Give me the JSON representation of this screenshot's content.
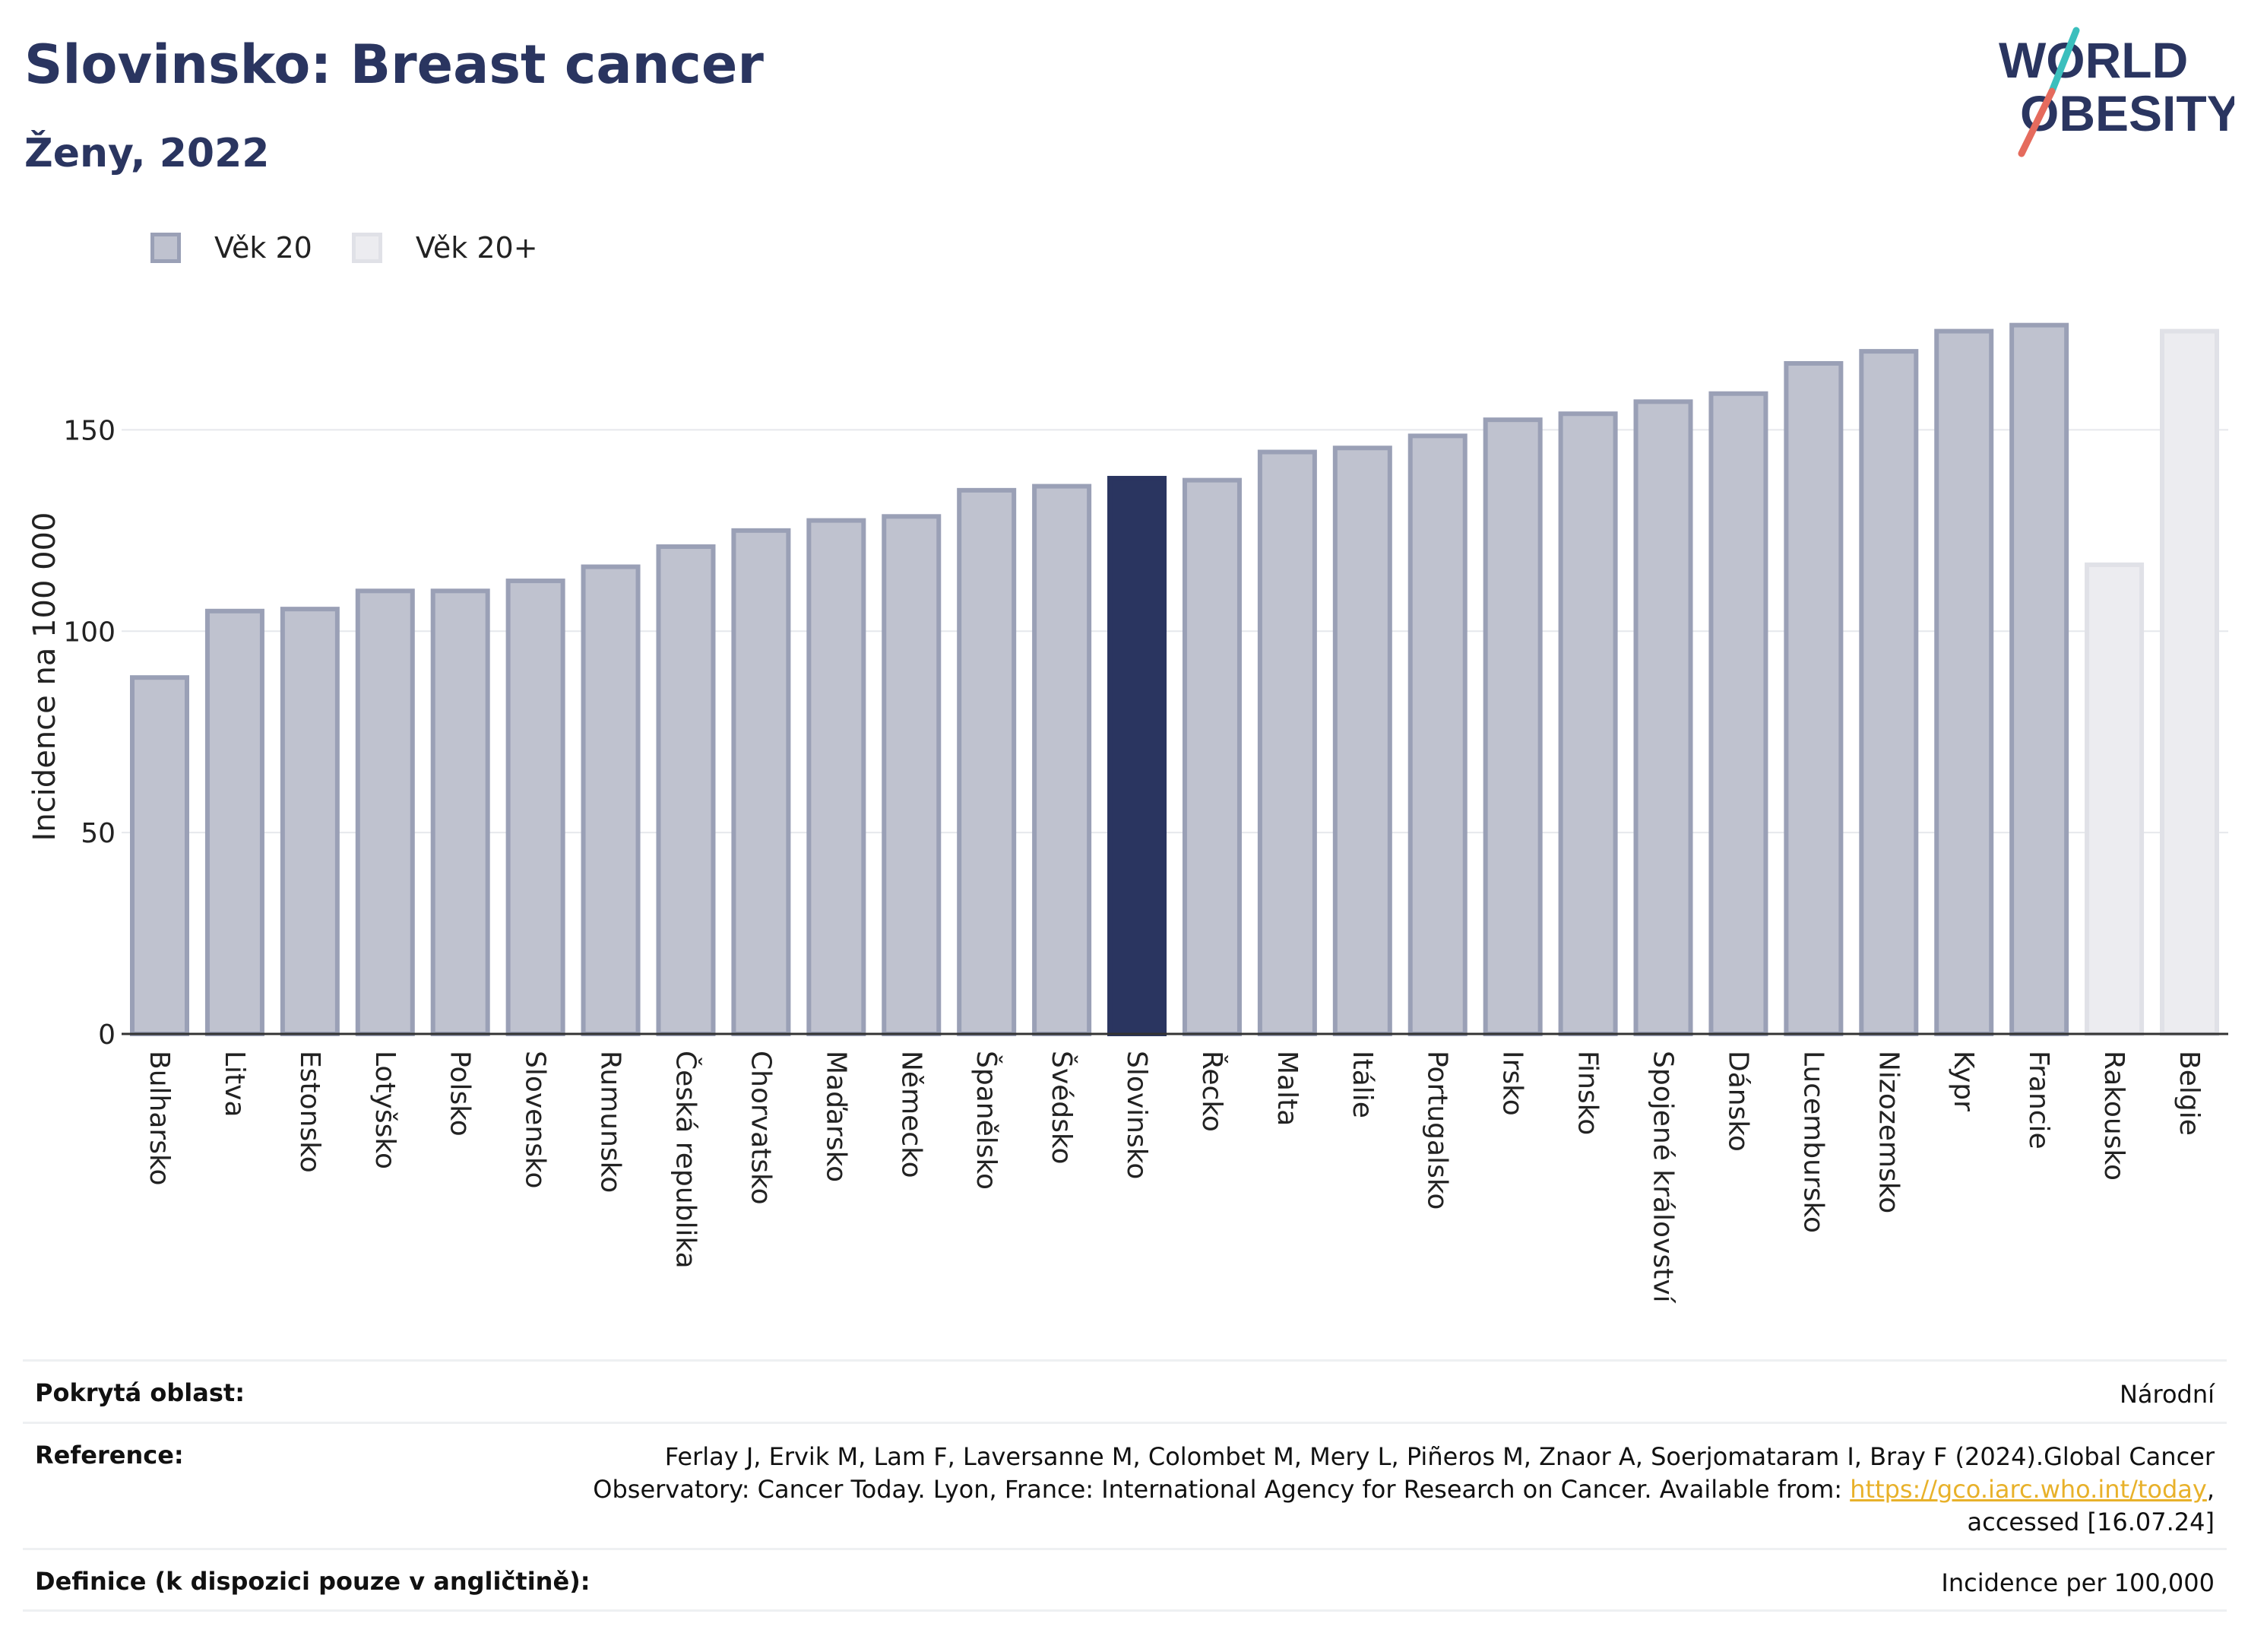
{
  "header": {
    "title": "Slovinsko: Breast cancer",
    "subtitle": "Ženy, 2022"
  },
  "logo": {
    "line1_left": "W",
    "line1_o": "O",
    "line1_right": "RLD",
    "line2_o": "O",
    "line2_right": "BESITY",
    "color_text": "#2a3560",
    "color_slash_red": "#e56b5d",
    "color_slash_teal": "#3bbfbd"
  },
  "legend": [
    {
      "label": "Věk 20",
      "color": "#bfc2cf"
    },
    {
      "label": "Věk 20+",
      "color": "#ececf0"
    }
  ],
  "colors": {
    "bar_default": "#bfc2cf",
    "bar_default_border": "#9aa0b6",
    "bar_highlight": "#2a3560",
    "bar_light": "#ececf0",
    "bar_light_border": "#e0e1e7",
    "grid": "#e6e8ec",
    "title": "#2a3560"
  },
  "chart_data": {
    "type": "bar",
    "ylabel": "Incidence na 100 000",
    "xlabel": "",
    "ylim": [
      0,
      185
    ],
    "yticks": [
      0,
      50,
      100,
      150
    ],
    "grid": true,
    "legend_position": "top-left",
    "categories": [
      "Bulharsko",
      "Litva",
      "Estonsko",
      "Lotyšsko",
      "Polsko",
      "Slovensko",
      "Rumunsko",
      "Česká republika",
      "Chorvatsko",
      "Maďarsko",
      "Německo",
      "Španělsko",
      "Švédsko",
      "Slovinsko",
      "Řecko",
      "Malta",
      "Itálie",
      "Portugalsko",
      "Irsko",
      "Finsko",
      "Spojené království",
      "Dánsko",
      "Lucembursko",
      "Nizozemsko",
      "Kypr",
      "Francie",
      "Rakousko",
      "Belgie"
    ],
    "values": [
      88.5,
      105,
      105.5,
      110,
      110,
      112.5,
      116,
      121,
      125,
      127.5,
      128.5,
      135,
      136,
      138,
      137.5,
      144.5,
      145.5,
      148.5,
      152.5,
      154,
      157,
      159,
      166.5,
      169.5,
      174.5,
      176,
      116.5,
      174.5
    ],
    "groups": [
      "Věk 20",
      "Věk 20",
      "Věk 20",
      "Věk 20",
      "Věk 20",
      "Věk 20",
      "Věk 20",
      "Věk 20",
      "Věk 20",
      "Věk 20",
      "Věk 20",
      "Věk 20",
      "Věk 20",
      "Věk 20",
      "Věk 20",
      "Věk 20",
      "Věk 20",
      "Věk 20",
      "Věk 20",
      "Věk 20",
      "Věk 20",
      "Věk 20",
      "Věk 20",
      "Věk 20",
      "Věk 20",
      "Věk 20",
      "Věk 20+",
      "Věk 20+"
    ],
    "highlight": "Slovinsko"
  },
  "footer": {
    "area_label": "Pokrytá oblast:",
    "area_value": "Národní",
    "ref_label": "Reference:",
    "ref_line1": "Ferlay J, Ervik M, Lam F, Laversanne M, Colombet M, Mery L, Piñeros M, Znaor A, Soerjomataram I, Bray F (2024).Global Cancer",
    "ref_line2_pre": "Observatory: Cancer Today. Lyon, France: International Agency for Research on Cancer. Available from: ",
    "ref_link": "https://gco.iarc.who.int/today",
    "ref_line2_post": ",",
    "ref_line3": "accessed [16.07.24]",
    "def_label": "Definice (k dispozici pouze v angličtině):",
    "def_value": "Incidence per 100,000"
  }
}
